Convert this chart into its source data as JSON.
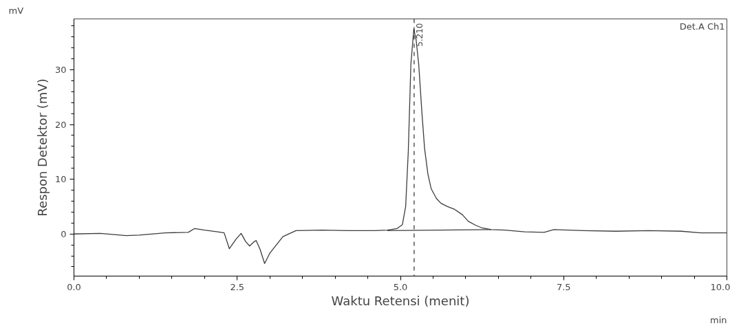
{
  "chart_data": {
    "type": "line",
    "xlabel": "Waktu Retensi (menit)",
    "ylabel": "Respon Detektor (mV)",
    "annotations": [
      "mV",
      "Det.A Ch1",
      "min"
    ],
    "xlim": [
      0,
      10
    ],
    "ylim": [
      -7.7,
      39.3
    ],
    "xticks": [
      {
        "value": 0,
        "label": "0.0"
      },
      {
        "value": 2.5,
        "label": "2.5"
      },
      {
        "value": 5,
        "label": "5.0"
      },
      {
        "value": 7.5,
        "label": "7.5"
      },
      {
        "value": 10,
        "label": "10.0"
      }
    ],
    "yticks": [
      0,
      10,
      20,
      30
    ],
    "grid": false,
    "line_style": "solid",
    "ref_lines": [
      {
        "axis": "x",
        "value": 5.21,
        "label": "5.210",
        "line_style": "dashed",
        "color": "#000000"
      }
    ],
    "series": [
      {
        "color": "#3c3c3c",
        "x": [
          0,
          0.4,
          0.8,
          1.0,
          1.4,
          1.75,
          1.85,
          2.0,
          2.2,
          2.3,
          2.38,
          2.48,
          2.56,
          2.63,
          2.69,
          2.75,
          2.79,
          2.85,
          2.92,
          3.0,
          3.2,
          3.4,
          3.8,
          4.2,
          4.6,
          4.8,
          4.95,
          5.03,
          5.08,
          5.12,
          5.16,
          5.205,
          5.24,
          5.28,
          5.33,
          5.37,
          5.42,
          5.47,
          5.55,
          5.62,
          5.72,
          5.83,
          5.95,
          6.04,
          6.15,
          6.25,
          6.39,
          6.6,
          6.9,
          7.2,
          7.35,
          7.8,
          8.3,
          8.8,
          9.3,
          9.6,
          10.0
        ],
        "values": [
          0,
          0.1,
          -0.3,
          -0.2,
          0.2,
          0.3,
          1.0,
          0.7,
          0.4,
          0.2,
          -2.7,
          -1.0,
          0.1,
          -1.4,
          -2.2,
          -1.5,
          -1.2,
          -2.8,
          -5.4,
          -3.5,
          -0.5,
          0.6,
          0.7,
          0.6,
          0.6,
          0.7,
          1.0,
          1.7,
          5.0,
          15.0,
          31.0,
          37.4,
          35.5,
          31.0,
          22.0,
          15.6,
          11.0,
          8.3,
          6.5,
          5.6,
          5.0,
          4.5,
          3.5,
          2.3,
          1.6,
          1.1,
          0.8,
          0.7,
          0.4,
          0.3,
          0.8,
          0.6,
          0.5,
          0.6,
          0.5,
          0.2,
          0.2
        ]
      },
      {
        "color": "#3c3c3c",
        "x": [
          4.8,
          6.39
        ],
        "values": [
          0.6,
          0.8
        ]
      }
    ]
  }
}
